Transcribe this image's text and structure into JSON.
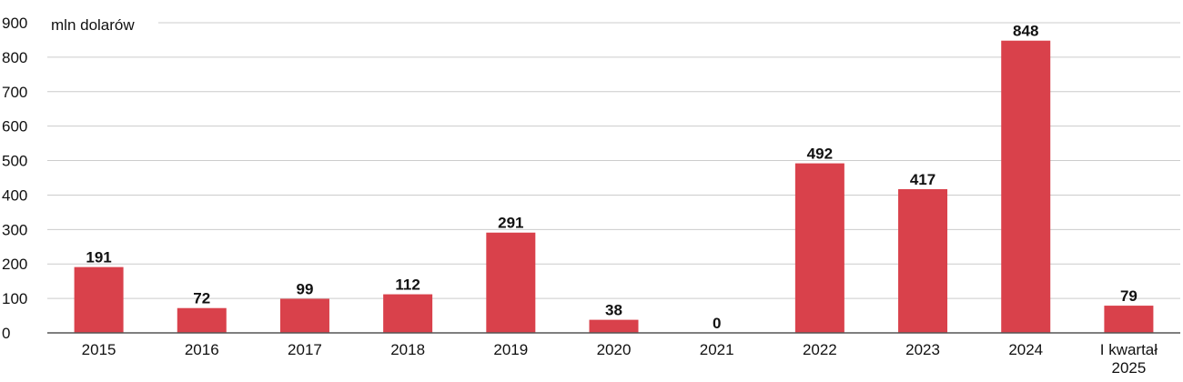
{
  "chart_data": {
    "type": "bar",
    "title": "",
    "unit_label": "mln dolarów",
    "xlabel": "",
    "ylabel": "",
    "ylim": [
      0,
      900
    ],
    "yticks": [
      0,
      100,
      200,
      300,
      400,
      500,
      600,
      700,
      800,
      900
    ],
    "grid": true,
    "categories": [
      "2015",
      "2016",
      "2017",
      "2018",
      "2019",
      "2020",
      "2021",
      "2022",
      "2023",
      "2024",
      "I kwartał\n2025"
    ],
    "values": [
      191,
      72,
      99,
      112,
      291,
      38,
      0,
      492,
      417,
      848,
      79
    ],
    "bar_color": "#d9414b"
  }
}
